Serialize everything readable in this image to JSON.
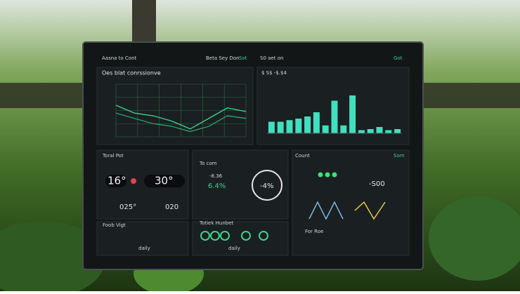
{
  "header": {
    "left": "Aasna to Cont",
    "center": "Beta Sey Don",
    "center_tag": "Sot",
    "right": "S0 aet on",
    "right_tag": "Got"
  },
  "line_panel": {
    "title": "Oes blat conrssionve",
    "ylim": [
      0,
      100
    ],
    "series": [
      {
        "values": [
          60,
          45,
          40,
          30,
          15,
          35,
          55,
          48
        ],
        "color": "#3fd08a"
      },
      {
        "values": [
          45,
          35,
          25,
          20,
          10,
          20,
          40,
          35
        ],
        "color": "#2a9d6a"
      }
    ]
  },
  "bar_panel": {
    "label": "$ S$ -$.$4",
    "ylim": [
      0,
      100
    ],
    "color": "#3fe0c0",
    "values": [
      22,
      22,
      25,
      28,
      32,
      40,
      15,
      62,
      15,
      72,
      6,
      8,
      12,
      6,
      8
    ]
  },
  "temp_panel": {
    "title": "Toral Pot",
    "temp1": "16°",
    "temp2": "30°",
    "small1": "025°",
    "small2": "020"
  },
  "ring_panel": {
    "title": "To com",
    "value1": "6.4%",
    "value2": "-4%",
    "label": "-8.36"
  },
  "count_panel": {
    "title": "Count",
    "tag": "Som",
    "value": "-S00",
    "footer": "For Roe"
  },
  "bottom_left": {
    "title": "Foob Vigt",
    "footer": "daily"
  },
  "bottom_mid": {
    "title": "Totiek Hunbet",
    "footer": "daily"
  }
}
